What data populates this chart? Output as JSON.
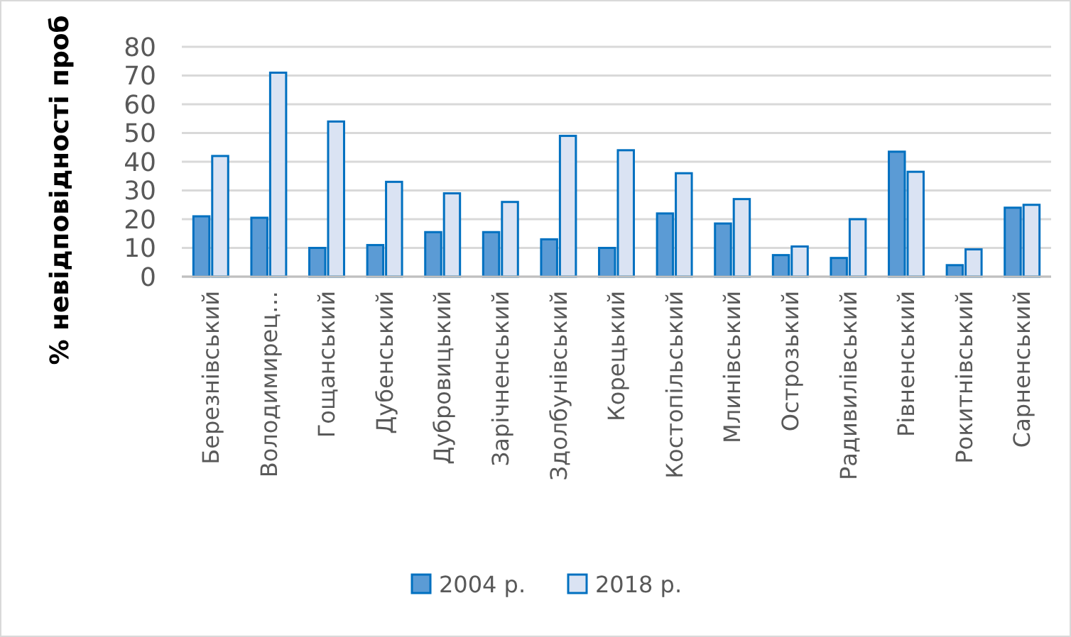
{
  "chart_data": {
    "type": "bar",
    "ylabel": "% невідповідності проб",
    "categories": [
      "Березнівський",
      "Володимирец…",
      "Гощанський",
      "Дубенський",
      "Дубровицький",
      "Зарічненський",
      "Здолбунівський",
      "Корецький",
      "Костопільський",
      "Млинівський",
      "Острозький",
      "Радивилівський",
      "Рівненський",
      "Рокитнівський",
      "Сарненський"
    ],
    "series": [
      {
        "name": "2004 р.",
        "color": "#5b9bd5",
        "values": [
          21,
          20.5,
          10,
          11,
          15.5,
          15.5,
          13,
          10,
          22,
          18.5,
          7.5,
          6.5,
          43.5,
          4,
          24
        ]
      },
      {
        "name": "2018 р.",
        "color": "#dae3f3",
        "values": [
          42,
          71,
          54,
          33,
          29,
          26,
          49,
          44,
          36,
          27,
          10.5,
          20,
          36.5,
          9.5,
          25
        ]
      }
    ],
    "ylim": [
      0,
      80
    ],
    "yticks": [
      0,
      10,
      20,
      30,
      40,
      50,
      60,
      70,
      80
    ],
    "grid": "y",
    "legend": "bottom"
  }
}
